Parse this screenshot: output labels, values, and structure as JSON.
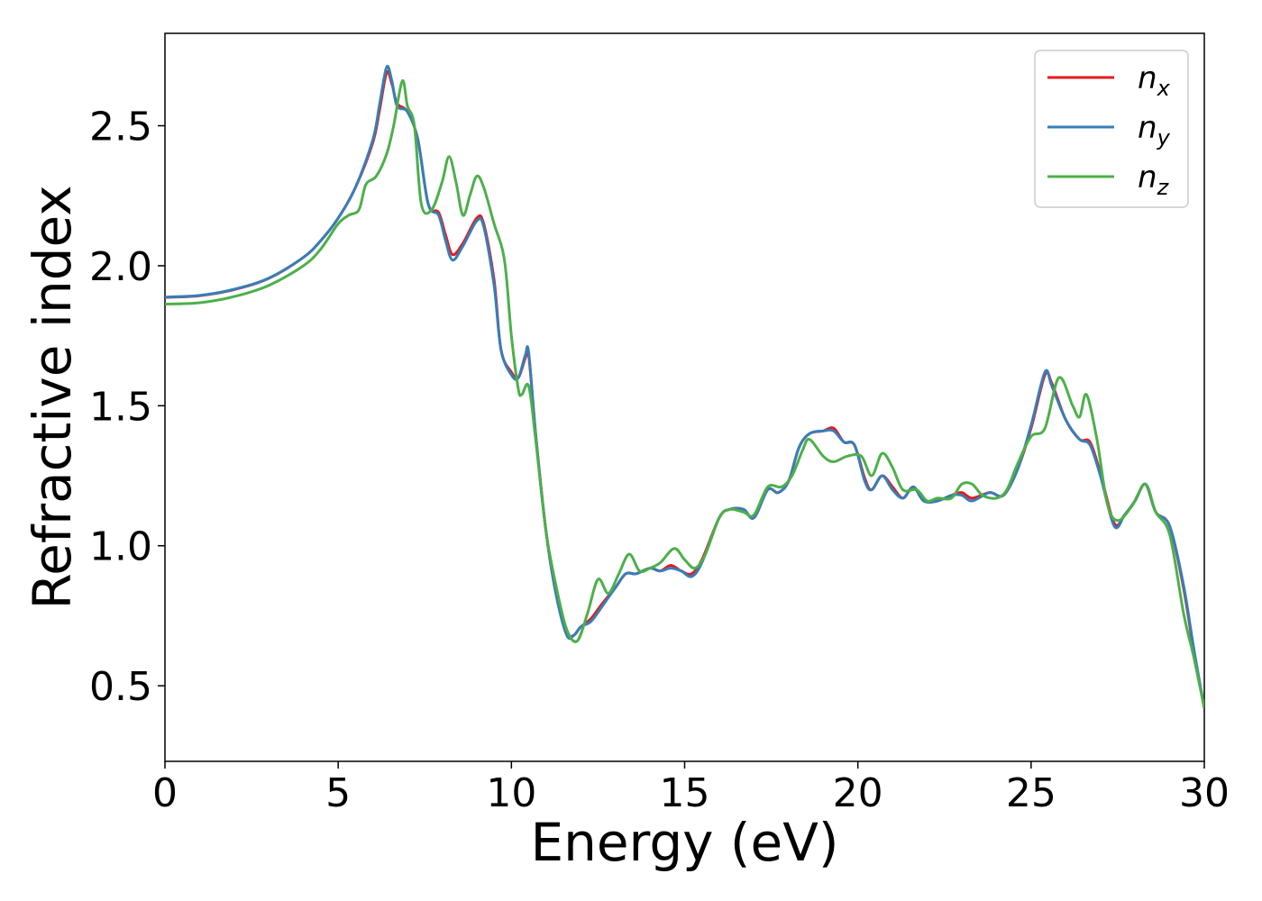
{
  "chart_data": {
    "type": "line",
    "xlabel": "Energy (eV)",
    "ylabel": "Refractive index",
    "xlim": [
      0,
      30
    ],
    "ylim": [
      0.23,
      2.83
    ],
    "xticks": [
      0,
      5,
      10,
      15,
      20,
      25,
      30
    ],
    "xtick_labels": [
      "0",
      "5",
      "10",
      "15",
      "20",
      "25",
      "30"
    ],
    "yticks": [
      0.5,
      1.0,
      1.5,
      2.0,
      2.5
    ],
    "ytick_labels": [
      "0.5",
      "1.0",
      "1.5",
      "2.0",
      "2.5"
    ],
    "grid": false,
    "legend_position": "top-right",
    "series": [
      {
        "name": "n",
        "subscript": "x",
        "color": "#e41a1c",
        "points": [
          [
            0,
            1.887
          ],
          [
            1,
            1.893
          ],
          [
            2,
            1.915
          ],
          [
            3,
            1.955
          ],
          [
            4,
            2.03
          ],
          [
            4.5,
            2.09
          ],
          [
            5,
            2.17
          ],
          [
            5.5,
            2.28
          ],
          [
            6,
            2.44
          ],
          [
            6.2,
            2.56
          ],
          [
            6.4,
            2.69
          ],
          [
            6.55,
            2.65
          ],
          [
            6.7,
            2.58
          ],
          [
            7,
            2.55
          ],
          [
            7.3,
            2.45
          ],
          [
            7.6,
            2.22
          ],
          [
            7.9,
            2.19
          ],
          [
            8.1,
            2.11
          ],
          [
            8.3,
            2.04
          ],
          [
            8.6,
            2.08
          ],
          [
            9,
            2.17
          ],
          [
            9.2,
            2.15
          ],
          [
            9.5,
            1.95
          ],
          [
            9.7,
            1.7
          ],
          [
            10,
            1.62
          ],
          [
            10.2,
            1.6
          ],
          [
            10.4,
            1.67
          ],
          [
            10.5,
            1.68
          ],
          [
            10.7,
            1.4
          ],
          [
            11,
            1.05
          ],
          [
            11.3,
            0.82
          ],
          [
            11.6,
            0.69
          ],
          [
            11.8,
            0.68
          ],
          [
            12,
            0.71
          ],
          [
            12.3,
            0.74
          ],
          [
            12.6,
            0.79
          ],
          [
            13,
            0.85
          ],
          [
            13.3,
            0.9
          ],
          [
            13.6,
            0.9
          ],
          [
            14,
            0.92
          ],
          [
            14.3,
            0.91
          ],
          [
            14.6,
            0.93
          ],
          [
            14.9,
            0.91
          ],
          [
            15.2,
            0.9
          ],
          [
            15.5,
            0.95
          ],
          [
            16,
            1.1
          ],
          [
            16.3,
            1.13
          ],
          [
            16.7,
            1.13
          ],
          [
            17,
            1.1
          ],
          [
            17.4,
            1.2
          ],
          [
            17.7,
            1.19
          ],
          [
            18,
            1.23
          ],
          [
            18.3,
            1.35
          ],
          [
            18.6,
            1.4
          ],
          [
            19,
            1.41
          ],
          [
            19.3,
            1.42
          ],
          [
            19.6,
            1.37
          ],
          [
            19.9,
            1.36
          ],
          [
            20.2,
            1.24
          ],
          [
            20.4,
            1.2
          ],
          [
            20.7,
            1.25
          ],
          [
            21,
            1.21
          ],
          [
            21.3,
            1.17
          ],
          [
            21.6,
            1.21
          ],
          [
            21.9,
            1.16
          ],
          [
            22.3,
            1.16
          ],
          [
            22.7,
            1.18
          ],
          [
            23,
            1.19
          ],
          [
            23.3,
            1.17
          ],
          [
            23.8,
            1.19
          ],
          [
            24.2,
            1.18
          ],
          [
            24.6,
            1.27
          ],
          [
            25,
            1.42
          ],
          [
            25.4,
            1.61
          ],
          [
            25.6,
            1.58
          ],
          [
            26,
            1.45
          ],
          [
            26.4,
            1.38
          ],
          [
            26.7,
            1.37
          ],
          [
            27,
            1.26
          ],
          [
            27.4,
            1.08
          ],
          [
            27.7,
            1.11
          ],
          [
            28,
            1.16
          ],
          [
            28.3,
            1.22
          ],
          [
            28.6,
            1.12
          ],
          [
            29,
            1.07
          ],
          [
            29.4,
            0.85
          ],
          [
            29.7,
            0.62
          ],
          [
            30,
            0.42
          ]
        ]
      },
      {
        "name": "n",
        "subscript": "y",
        "color": "#377eb8",
        "points": [
          [
            0,
            1.888
          ],
          [
            1,
            1.894
          ],
          [
            2,
            1.916
          ],
          [
            3,
            1.956
          ],
          [
            4,
            2.03
          ],
          [
            4.5,
            2.09
          ],
          [
            5,
            2.17
          ],
          [
            5.5,
            2.28
          ],
          [
            6,
            2.45
          ],
          [
            6.2,
            2.58
          ],
          [
            6.4,
            2.71
          ],
          [
            6.55,
            2.66
          ],
          [
            6.7,
            2.57
          ],
          [
            7,
            2.55
          ],
          [
            7.3,
            2.45
          ],
          [
            7.6,
            2.22
          ],
          [
            7.9,
            2.18
          ],
          [
            8.1,
            2.09
          ],
          [
            8.3,
            2.02
          ],
          [
            8.6,
            2.07
          ],
          [
            9,
            2.16
          ],
          [
            9.2,
            2.14
          ],
          [
            9.5,
            1.93
          ],
          [
            9.7,
            1.7
          ],
          [
            10,
            1.61
          ],
          [
            10.2,
            1.6
          ],
          [
            10.4,
            1.68
          ],
          [
            10.5,
            1.69
          ],
          [
            10.7,
            1.4
          ],
          [
            11,
            1.05
          ],
          [
            11.3,
            0.82
          ],
          [
            11.6,
            0.68
          ],
          [
            11.8,
            0.68
          ],
          [
            12,
            0.71
          ],
          [
            12.3,
            0.73
          ],
          [
            12.6,
            0.78
          ],
          [
            13,
            0.85
          ],
          [
            13.3,
            0.9
          ],
          [
            13.6,
            0.9
          ],
          [
            14,
            0.92
          ],
          [
            14.3,
            0.91
          ],
          [
            14.6,
            0.92
          ],
          [
            14.9,
            0.91
          ],
          [
            15.2,
            0.89
          ],
          [
            15.5,
            0.94
          ],
          [
            16,
            1.1
          ],
          [
            16.3,
            1.13
          ],
          [
            16.7,
            1.13
          ],
          [
            17,
            1.1
          ],
          [
            17.4,
            1.2
          ],
          [
            17.7,
            1.19
          ],
          [
            18,
            1.23
          ],
          [
            18.3,
            1.35
          ],
          [
            18.6,
            1.4
          ],
          [
            19,
            1.41
          ],
          [
            19.3,
            1.41
          ],
          [
            19.6,
            1.37
          ],
          [
            19.9,
            1.36
          ],
          [
            20.2,
            1.23
          ],
          [
            20.4,
            1.2
          ],
          [
            20.7,
            1.25
          ],
          [
            21,
            1.2
          ],
          [
            21.3,
            1.17
          ],
          [
            21.6,
            1.21
          ],
          [
            21.9,
            1.16
          ],
          [
            22.3,
            1.16
          ],
          [
            22.7,
            1.18
          ],
          [
            23,
            1.18
          ],
          [
            23.3,
            1.16
          ],
          [
            23.8,
            1.19
          ],
          [
            24.2,
            1.18
          ],
          [
            24.6,
            1.27
          ],
          [
            25,
            1.43
          ],
          [
            25.4,
            1.62
          ],
          [
            25.6,
            1.57
          ],
          [
            26,
            1.45
          ],
          [
            26.4,
            1.38
          ],
          [
            26.7,
            1.36
          ],
          [
            27,
            1.25
          ],
          [
            27.4,
            1.07
          ],
          [
            27.7,
            1.11
          ],
          [
            28,
            1.16
          ],
          [
            28.3,
            1.22
          ],
          [
            28.6,
            1.12
          ],
          [
            29,
            1.07
          ],
          [
            29.4,
            0.86
          ],
          [
            29.7,
            0.63
          ],
          [
            30,
            0.42
          ]
        ]
      },
      {
        "name": "n",
        "subscript": "z",
        "color": "#4daf4a",
        "points": [
          [
            0,
            1.863
          ],
          [
            1,
            1.868
          ],
          [
            2,
            1.89
          ],
          [
            3,
            1.93
          ],
          [
            4,
            2.0
          ],
          [
            4.5,
            2.06
          ],
          [
            5,
            2.15
          ],
          [
            5.3,
            2.18
          ],
          [
            5.6,
            2.2
          ],
          [
            5.8,
            2.29
          ],
          [
            6.1,
            2.32
          ],
          [
            6.4,
            2.4
          ],
          [
            6.6,
            2.5
          ],
          [
            6.85,
            2.66
          ],
          [
            7,
            2.57
          ],
          [
            7.2,
            2.5
          ],
          [
            7.4,
            2.22
          ],
          [
            7.7,
            2.2
          ],
          [
            8,
            2.3
          ],
          [
            8.2,
            2.39
          ],
          [
            8.4,
            2.3
          ],
          [
            8.6,
            2.18
          ],
          [
            8.8,
            2.25
          ],
          [
            9,
            2.32
          ],
          [
            9.2,
            2.28
          ],
          [
            9.5,
            2.15
          ],
          [
            9.8,
            2.02
          ],
          [
            10,
            1.75
          ],
          [
            10.2,
            1.56
          ],
          [
            10.3,
            1.54
          ],
          [
            10.5,
            1.57
          ],
          [
            10.7,
            1.38
          ],
          [
            11,
            1.05
          ],
          [
            11.3,
            0.85
          ],
          [
            11.6,
            0.7
          ],
          [
            11.9,
            0.66
          ],
          [
            12.2,
            0.76
          ],
          [
            12.5,
            0.88
          ],
          [
            12.8,
            0.83
          ],
          [
            13.1,
            0.9
          ],
          [
            13.4,
            0.97
          ],
          [
            13.7,
            0.91
          ],
          [
            14,
            0.92
          ],
          [
            14.3,
            0.94
          ],
          [
            14.7,
            0.99
          ],
          [
            15,
            0.95
          ],
          [
            15.3,
            0.92
          ],
          [
            15.6,
            0.97
          ],
          [
            16,
            1.1
          ],
          [
            16.3,
            1.13
          ],
          [
            16.7,
            1.12
          ],
          [
            17,
            1.11
          ],
          [
            17.4,
            1.21
          ],
          [
            17.8,
            1.21
          ],
          [
            18.1,
            1.25
          ],
          [
            18.4,
            1.34
          ],
          [
            18.6,
            1.38
          ],
          [
            19,
            1.32
          ],
          [
            19.3,
            1.3
          ],
          [
            19.7,
            1.32
          ],
          [
            20.1,
            1.32
          ],
          [
            20.4,
            1.25
          ],
          [
            20.7,
            1.33
          ],
          [
            21,
            1.28
          ],
          [
            21.3,
            1.2
          ],
          [
            21.7,
            1.2
          ],
          [
            22,
            1.16
          ],
          [
            22.3,
            1.17
          ],
          [
            22.7,
            1.17
          ],
          [
            23,
            1.22
          ],
          [
            23.3,
            1.22
          ],
          [
            23.6,
            1.18
          ],
          [
            24,
            1.17
          ],
          [
            24.3,
            1.2
          ],
          [
            24.6,
            1.29
          ],
          [
            25,
            1.39
          ],
          [
            25.4,
            1.42
          ],
          [
            25.8,
            1.6
          ],
          [
            26.2,
            1.5
          ],
          [
            26.4,
            1.46
          ],
          [
            26.6,
            1.54
          ],
          [
            26.9,
            1.38
          ],
          [
            27.2,
            1.15
          ],
          [
            27.5,
            1.09
          ],
          [
            27.9,
            1.14
          ],
          [
            28.3,
            1.22
          ],
          [
            28.6,
            1.12
          ],
          [
            29,
            1.04
          ],
          [
            29.4,
            0.76
          ],
          [
            29.7,
            0.6
          ],
          [
            30,
            0.42
          ]
        ]
      }
    ]
  }
}
